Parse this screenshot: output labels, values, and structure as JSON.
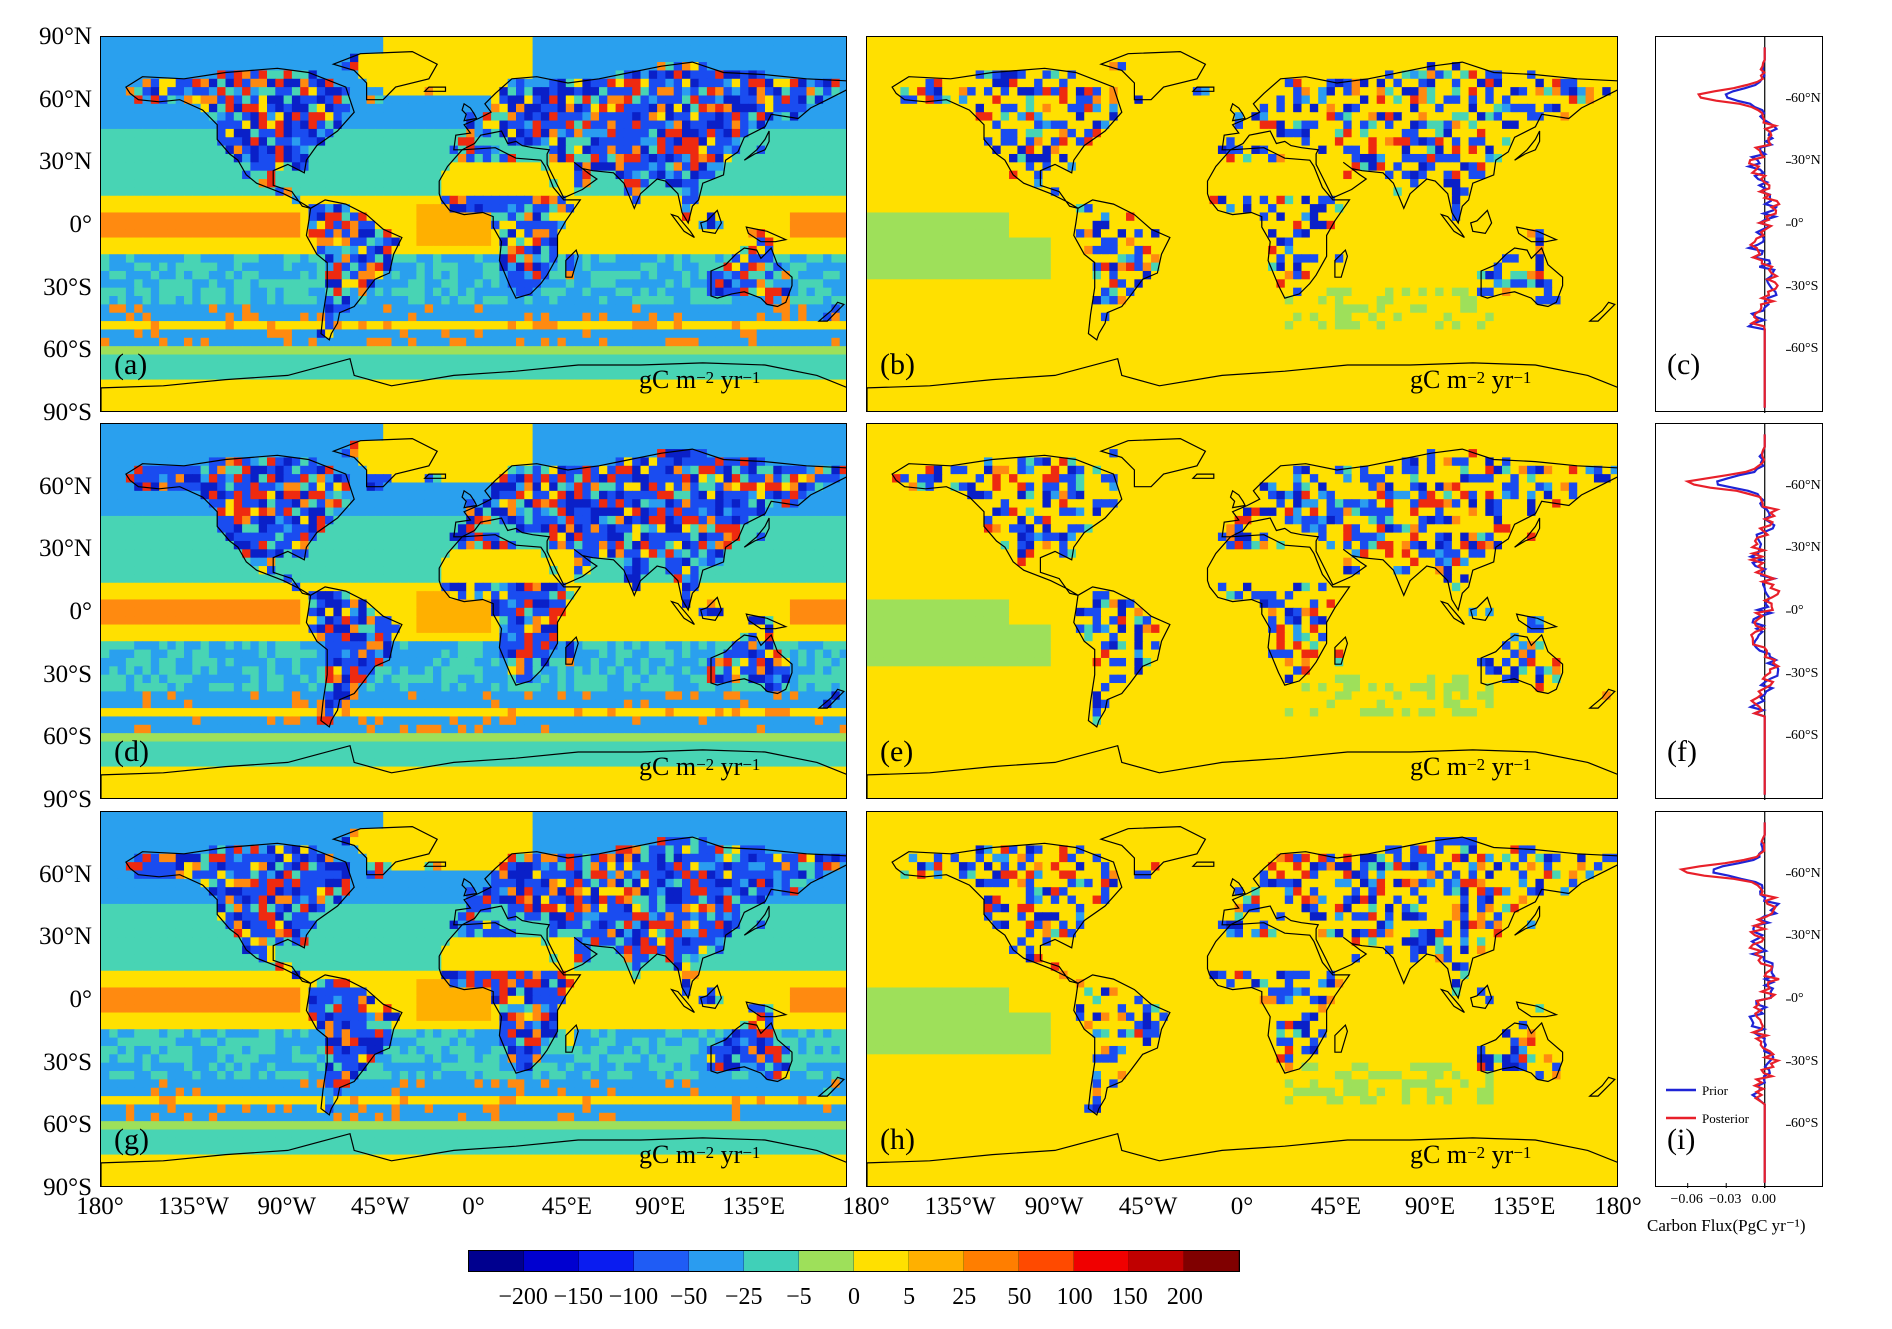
{
  "lat_labels": [
    "90°N",
    "60°N",
    "30°N",
    "0°",
    "30°S",
    "60°S",
    "90°S"
  ],
  "lon_labels_left": [
    "180°",
    "135°W",
    "90°W",
    "45°W",
    "0°",
    "45°E",
    "90°E",
    "135°E"
  ],
  "lon_labels_right": [
    "180°",
    "135°W",
    "90°W",
    "45°W",
    "0°",
    "45°E",
    "90°E",
    "135°E",
    "180°"
  ],
  "unit_text": {
    "base": "gC m",
    "exp1": "−2",
    "mid": " yr",
    "exp2": "−1"
  },
  "panels": {
    "left": [
      "(a)",
      "(d)",
      "(g)"
    ],
    "middle": [
      "(b)",
      "(e)",
      "(h)"
    ],
    "right": [
      "(c)",
      "(f)",
      "(i)"
    ]
  },
  "side_lat_labels": [
    "60°N",
    "30°N",
    "0°",
    "30°S",
    "60°S"
  ],
  "side_x_ticks": [
    "−0.06",
    "−0.03",
    "0.00"
  ],
  "side_x_title": "Carbon Flux(PgC yr⁻¹)",
  "legend": {
    "prior": "Prior",
    "posterior": "Posterior"
  },
  "series_colors": {
    "prior": "#1f24d6",
    "posterior": "#e8202a"
  },
  "colorbar": {
    "ticks": [
      "−200",
      "−150",
      "−100",
      "−50",
      "−25",
      "−5",
      "0",
      "5",
      "25",
      "50",
      "100",
      "150",
      "200"
    ],
    "colors": [
      "#00008f",
      "#0000d0",
      "#0a1cf0",
      "#1f5cf5",
      "#2a9cf0",
      "#40d0b8",
      "#9ee05a",
      "#ffe000",
      "#ffb000",
      "#ff7e00",
      "#ff4a00",
      "#f00000",
      "#c00000",
      "#800000"
    ]
  },
  "map_colors": {
    "ocean_neutral": "#9ee05a",
    "ocean_teal": "#48d4b4",
    "ocean_blue": "#2aa0ee",
    "ocean_orange": "#ff8a10",
    "ocean_yellow": "#ffe000",
    "land_blue": "#1a4cf0",
    "land_red": "#ee2a10"
  }
}
